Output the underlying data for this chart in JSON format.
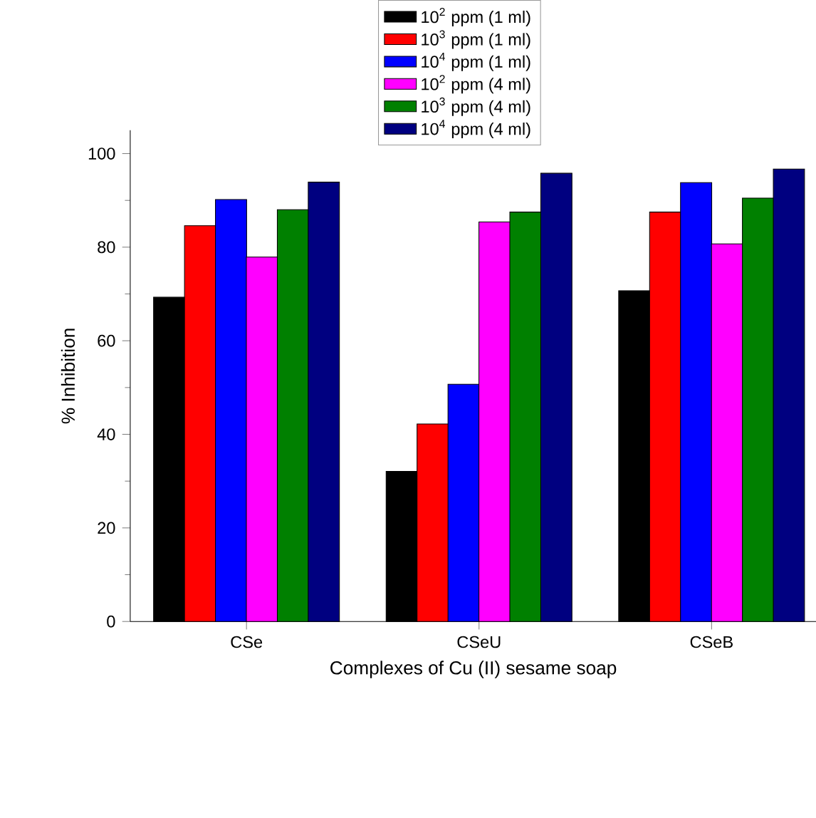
{
  "chart_data": {
    "type": "bar",
    "xlabel": "Complexes of Cu (II) sesame soap",
    "ylabel": "% Inhibition",
    "categories": [
      "CSe",
      "CSeU",
      "CSeB"
    ],
    "series": [
      {
        "name": "10$^{2}$ ppm (1 ml)",
        "color": "#000000",
        "values": [
          69.3,
          32.1,
          70.7
        ]
      },
      {
        "name": "10$^{3}$ ppm (1 ml)",
        "color": "#ff0000",
        "values": [
          84.6,
          42.2,
          87.5
        ]
      },
      {
        "name": "10$^{4}$ ppm (1 ml)",
        "color": "#0000ff",
        "values": [
          90.2,
          50.7,
          93.8
        ]
      },
      {
        "name": "10$^{2}$ ppm (4 ml)",
        "color": "#ff00ff",
        "values": [
          77.9,
          85.4,
          80.7
        ]
      },
      {
        "name": "10$^{3}$ ppm (4 ml)",
        "color": "#008000",
        "values": [
          88.0,
          87.5,
          90.5
        ]
      },
      {
        "name": "10$^{4}$ ppm (4 ml)",
        "color": "#000080",
        "values": [
          93.9,
          95.8,
          96.7
        ]
      }
    ],
    "ylim": [
      0,
      105
    ],
    "yticks": [
      0,
      20,
      40,
      60,
      80,
      100
    ],
    "grid": false,
    "legend": "top"
  }
}
